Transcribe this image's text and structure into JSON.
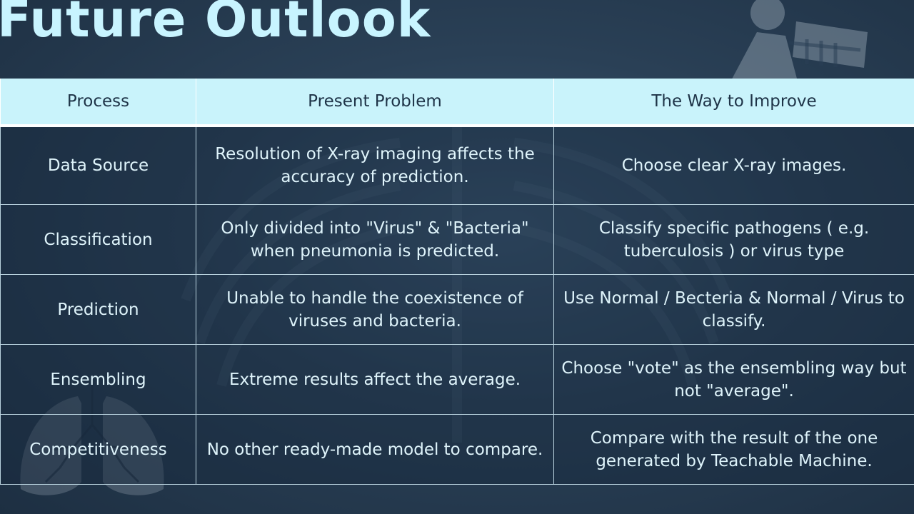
{
  "slide": {
    "title": "Future Outlook"
  },
  "table": {
    "headers": [
      "Process",
      "Present Problem",
      "The Way to Improve"
    ],
    "rows": [
      [
        "Data Source",
        "Resolution of X-ray imaging affects  the accuracy of prediction.",
        "Choose clear X-ray images."
      ],
      [
        "Classification",
        "Only divided into \"Virus\" & \"Bacteria\" when pneumonia is predicted.",
        "Classify specific pathogens ( e.g. tuberculosis ) or virus type"
      ],
      [
        "Prediction",
        "Unable to handle the coexistence of viruses and bacteria.",
        "Use Normal / Becteria & Normal / Virus to classify."
      ],
      [
        "Ensembling",
        "Extreme results affect the average.",
        "Choose \"vote\" as the ensembling way but not \"average\"."
      ],
      [
        "Competitiveness",
        "No other ready-made model to compare.",
        "Compare with the result of the one generated by Teachable Machine."
      ]
    ]
  },
  "colors": {
    "background": "#2a4056",
    "title": "#c8f4ff",
    "header_bg": "#c9f3fb",
    "header_text": "#1e3347",
    "cell_text": "#dff4fb",
    "grid": "#b9d2de"
  },
  "icons": {
    "top_right": "xray-person-icon",
    "bottom_left": "lungs-icon"
  }
}
